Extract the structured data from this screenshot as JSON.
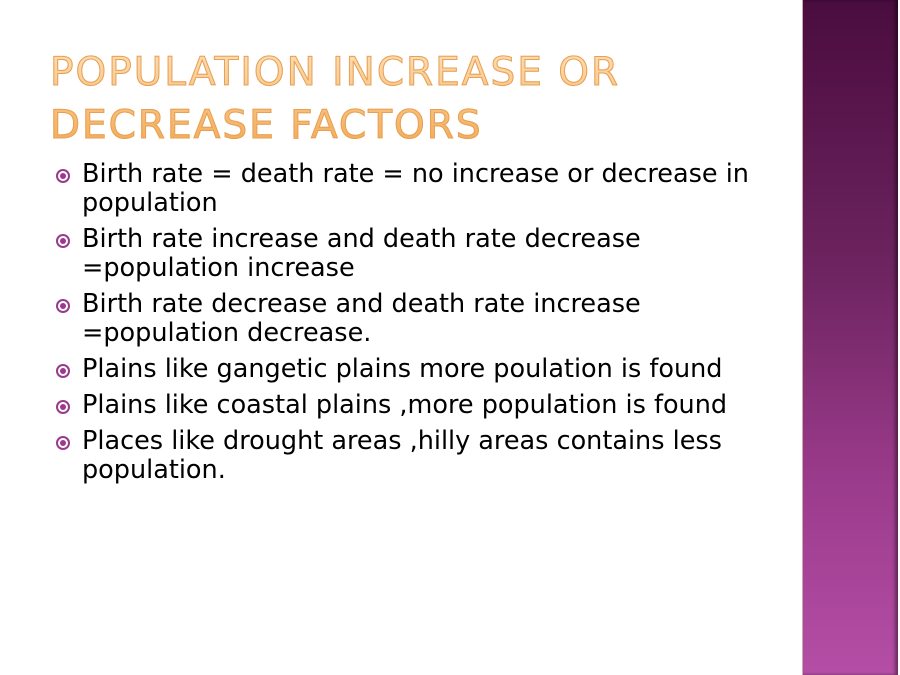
{
  "title": "POPULATION INCREASE OR DECREASE  FACTORS",
  "title_lines": [
    "POPULATION INCREASE OR",
    "DECREASE  FACTORS"
  ],
  "colors": {
    "title": "#f3a850",
    "bullet": "#9b3a8c",
    "sidebar": "#7a2a6c"
  },
  "bullet_icon": "circle-dot-icon",
  "bullets": [
    "Birth rate = death rate = no increase or decrease in population",
    "Birth rate increase and death rate decrease =population increase",
    "Birth rate decrease and death rate increase =population decrease.",
    "Plains like gangetic plains  more poulation is found",
    "Plains like coastal plains ,more  population  is found",
    "Places like drought areas ,hilly areas contains less population."
  ]
}
